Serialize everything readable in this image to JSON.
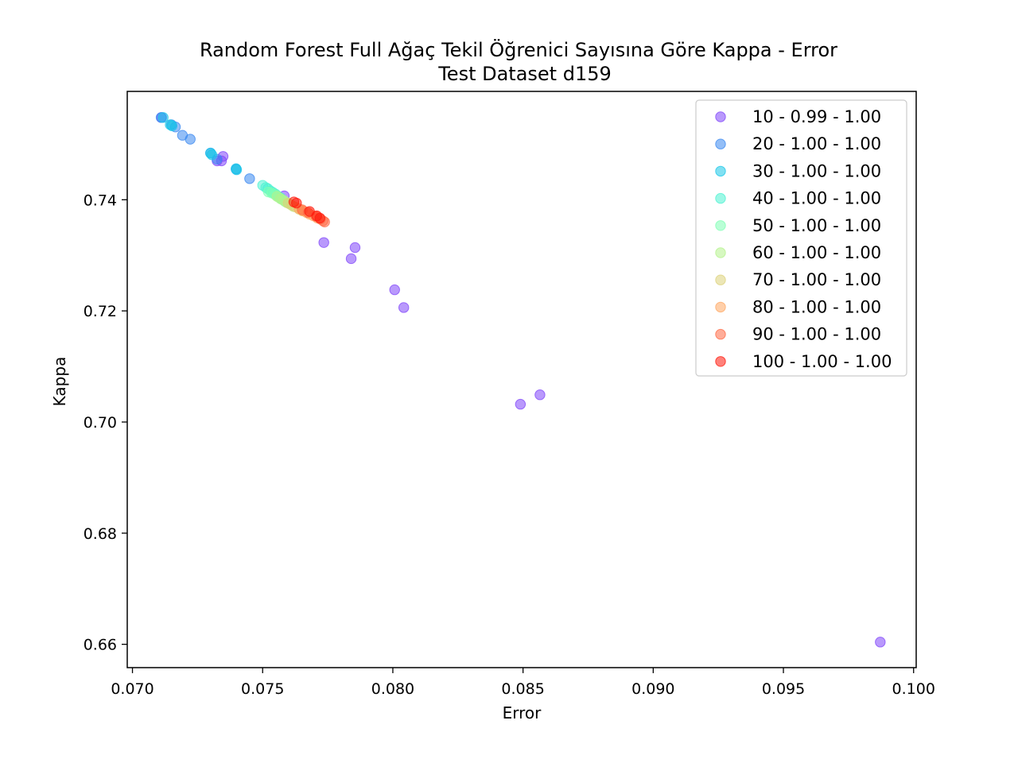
{
  "chart_data": {
    "type": "scatter",
    "title": "Random Forest Full Ağaç Tekil Öğrenici Sayısına Göre Kappa - Error",
    "subtitle": "Test Dataset  d159",
    "xlabel": "Error",
    "ylabel": "Kappa",
    "xlim": [
      0.0698,
      0.1001
    ],
    "ylim": [
      0.6558,
      0.7595
    ],
    "x_ticks": [
      "0.070",
      "0.075",
      "0.080",
      "0.085",
      "0.090",
      "0.095",
      "0.100"
    ],
    "y_ticks": [
      "0.66",
      "0.68",
      "0.70",
      "0.72",
      "0.74"
    ],
    "legend_position": "upper right",
    "grid": false,
    "series": [
      {
        "name": "10 - 0.99 - 1.00",
        "color": "#8046fa",
        "points": [
          [
            0.07112,
            0.7548
          ],
          [
            0.07325,
            0.747
          ],
          [
            0.07348,
            0.7478
          ],
          [
            0.07342,
            0.747
          ],
          [
            0.07583,
            0.7407
          ],
          [
            0.07735,
            0.7323
          ],
          [
            0.0784,
            0.7294
          ],
          [
            0.07855,
            0.7314
          ],
          [
            0.08007,
            0.7238
          ],
          [
            0.08042,
            0.7206
          ],
          [
            0.0849,
            0.7032
          ],
          [
            0.08565,
            0.7049
          ],
          [
            0.09872,
            0.6604
          ]
        ]
      },
      {
        "name": "20 - 1.00 - 1.00",
        "color": "#3a88f0",
        "points": [
          [
            0.0711,
            0.7548
          ],
          [
            0.0715,
            0.7535
          ],
          [
            0.07165,
            0.7531
          ],
          [
            0.07192,
            0.7516
          ],
          [
            0.07222,
            0.7509
          ],
          [
            0.073,
            0.7484
          ],
          [
            0.07325,
            0.7473
          ],
          [
            0.0745,
            0.7438
          ],
          [
            0.07398,
            0.7455
          ]
        ]
      },
      {
        "name": "30 - 1.00 - 1.00",
        "color": "#1ac7e8",
        "points": [
          [
            0.07118,
            0.7548
          ],
          [
            0.07145,
            0.7535
          ],
          [
            0.07152,
            0.7533
          ],
          [
            0.073,
            0.7484
          ],
          [
            0.07305,
            0.7481
          ],
          [
            0.07398,
            0.7456
          ],
          [
            0.074,
            0.7454
          ]
        ]
      },
      {
        "name": "40 - 1.00 - 1.00",
        "color": "#4cf2d2",
        "points": [
          [
            0.075,
            0.7426
          ],
          [
            0.07512,
            0.7422
          ],
          [
            0.0752,
            0.742
          ],
          [
            0.0753,
            0.7416
          ],
          [
            0.0754,
            0.7413
          ],
          [
            0.0755,
            0.741
          ],
          [
            0.0756,
            0.7406
          ],
          [
            0.0757,
            0.7403
          ]
        ]
      },
      {
        "name": "50 - 1.00 - 1.00",
        "color": "#80ffb4",
        "points": [
          [
            0.07522,
            0.7414
          ],
          [
            0.07535,
            0.7412
          ],
          [
            0.07548,
            0.7409
          ],
          [
            0.0756,
            0.7405
          ],
          [
            0.07572,
            0.7401
          ],
          [
            0.07585,
            0.7397
          ],
          [
            0.07598,
            0.7394
          ]
        ]
      },
      {
        "name": "60 - 1.00 - 1.00",
        "color": "#b4f28c",
        "points": [
          [
            0.07555,
            0.7406
          ],
          [
            0.07568,
            0.7402
          ],
          [
            0.0758,
            0.7399
          ],
          [
            0.07592,
            0.7395
          ],
          [
            0.07605,
            0.7392
          ],
          [
            0.07618,
            0.7388
          ]
        ]
      },
      {
        "name": "70 - 1.00 - 1.00",
        "color": "#dcd27a",
        "points": [
          [
            0.07598,
            0.7394
          ],
          [
            0.07612,
            0.739
          ],
          [
            0.07625,
            0.7387
          ],
          [
            0.0764,
            0.7383
          ],
          [
            0.07652,
            0.738
          ]
        ]
      },
      {
        "name": "80 - 1.00 - 1.00",
        "color": "#ffa863",
        "points": [
          [
            0.0764,
            0.7384
          ],
          [
            0.07655,
            0.738
          ],
          [
            0.07668,
            0.7377
          ],
          [
            0.0768,
            0.7374
          ],
          [
            0.07695,
            0.7371
          ],
          [
            0.0771,
            0.7367
          ]
        ]
      },
      {
        "name": "90 - 1.00 - 1.00",
        "color": "#ff6a45",
        "points": [
          [
            0.07652,
            0.7382
          ],
          [
            0.07675,
            0.7377
          ],
          [
            0.07705,
            0.737
          ],
          [
            0.07722,
            0.7365
          ],
          [
            0.07732,
            0.7362
          ],
          [
            0.07738,
            0.736
          ]
        ]
      },
      {
        "name": "100 - 1.00 - 1.00",
        "color": "#ff1a0c",
        "points": [
          [
            0.0762,
            0.7396
          ],
          [
            0.0763,
            0.7394
          ],
          [
            0.0768,
            0.7379
          ],
          [
            0.07708,
            0.7371
          ],
          [
            0.0772,
            0.7367
          ]
        ]
      }
    ]
  }
}
